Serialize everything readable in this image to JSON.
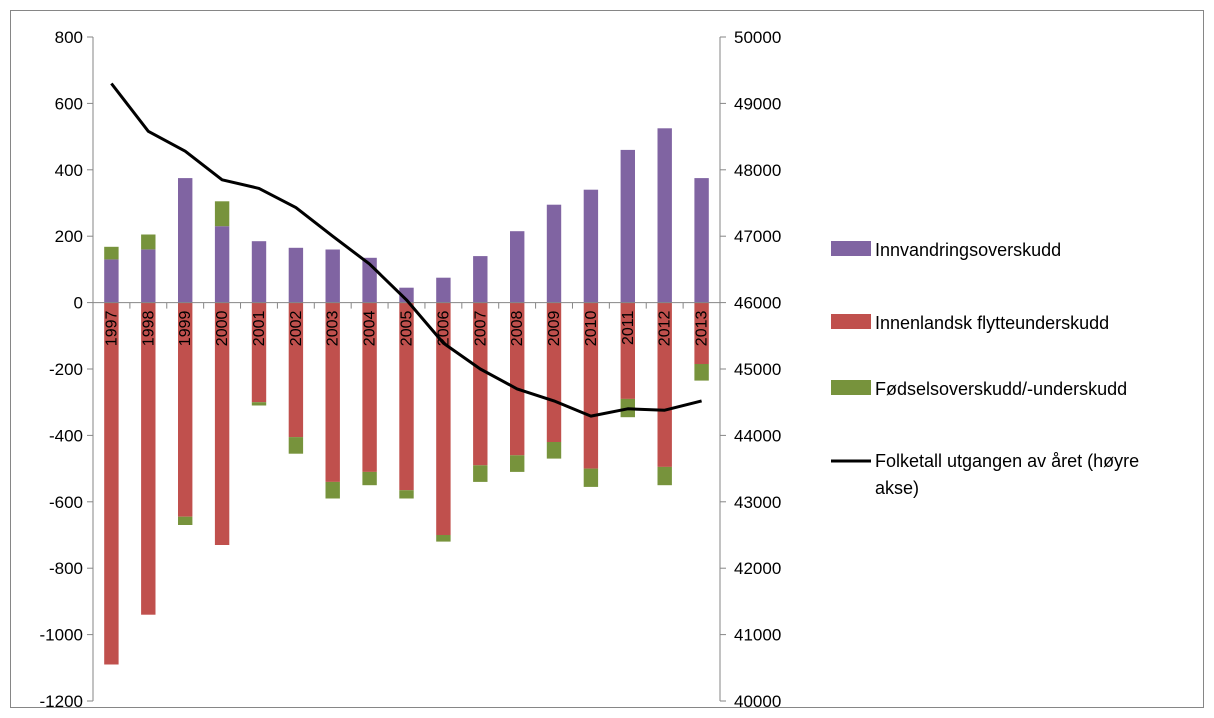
{
  "chart_data": {
    "type": "bar",
    "stacked": true,
    "categories": [
      "1997",
      "1998",
      "1999",
      "2000",
      "2001",
      "2002",
      "2003",
      "2004",
      "2005",
      "2006",
      "2007",
      "2008",
      "2009",
      "2010",
      "2011",
      "2012",
      "2013"
    ],
    "series": [
      {
        "name": "Innvandringsoverskudd",
        "color": "#8064A2",
        "axis": "left",
        "values": [
          130,
          160,
          375,
          230,
          185,
          165,
          160,
          135,
          45,
          75,
          140,
          215,
          295,
          340,
          460,
          525,
          375
        ]
      },
      {
        "name": "Innenlandsk flytteunderskudd",
        "color": "#C0504D",
        "axis": "left",
        "values": [
          -1090,
          -940,
          -645,
          -730,
          -300,
          -405,
          -540,
          -510,
          -565,
          -700,
          -490,
          -460,
          -420,
          -500,
          -290,
          -495,
          -185
        ]
      },
      {
        "name": "Fødselsoverskudd/-underskudd",
        "color": "#77933C",
        "axis": "left",
        "values": [
          38,
          45,
          -25,
          75,
          -10,
          -50,
          -50,
          -40,
          -25,
          -20,
          -50,
          -50,
          -50,
          -55,
          -55,
          -55,
          -50
        ]
      },
      {
        "name": "Folketall utgangen av året (høyre akse)",
        "color": "#000000",
        "axis": "right",
        "type": "line",
        "values": [
          49300,
          48580,
          48280,
          47850,
          47720,
          47430,
          47000,
          46580,
          46040,
          45390,
          45000,
          44700,
          44520,
          44290,
          44400,
          44380,
          44520
        ]
      }
    ],
    "left_axis": {
      "min": -1200,
      "max": 800,
      "step": 200,
      "ticks": [
        "800",
        "600",
        "400",
        "200",
        "0",
        "-200",
        "-400",
        "-600",
        "-800",
        "-1000",
        "-1200"
      ]
    },
    "right_axis": {
      "min": 40000,
      "max": 50000,
      "step": 1000,
      "ticks": [
        "50000",
        "49000",
        "48000",
        "47000",
        "46000",
        "45000",
        "44000",
        "43000",
        "42000",
        "41000",
        "40000"
      ]
    },
    "grid": false,
    "legend_position": "right"
  },
  "legend": {
    "item1": "Innvandringsoverskudd",
    "item2": "Innenlandsk flytteunderskudd",
    "item3": "Fødselsoverskudd/-underskudd",
    "item4_line1": "Folketall utgangen av året (høyre",
    "item4_line2": "akse)"
  }
}
